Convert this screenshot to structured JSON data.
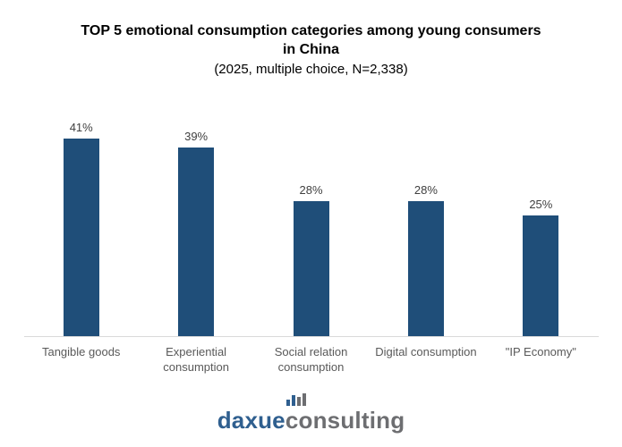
{
  "colors": {
    "bar": "#1F4E79",
    "value_label": "#404040",
    "category_label": "#595959",
    "axis_line": "#D9D9D9",
    "title": "#000000",
    "logo_blue": "#2F5F8F",
    "logo_gray": "#6D6E71"
  },
  "header": {
    "title_lines": [
      "TOP 5 emotional consumption categories among young consumers",
      "in China"
    ],
    "subtitle": "(2025, multiple choice, N=2,338)"
  },
  "chart_data": {
    "type": "bar",
    "title": "TOP 5 emotional consumption categories among young consumers in China",
    "subtitle": "(2025, multiple choice, N=2,338)",
    "categories": [
      "Tangible goods",
      "Experiential consumption",
      "Social relation consumption",
      "Digital consumption",
      "\"IP Economy\""
    ],
    "values": [
      41,
      39,
      28,
      28,
      25
    ],
    "value_labels": [
      "41%",
      "39%",
      "28%",
      "28%",
      "25%"
    ],
    "unit": "%",
    "xlabel": "",
    "ylabel": "",
    "ylim": [
      0,
      45
    ],
    "grid": false,
    "legend": false,
    "bar_color": "#1F4E79"
  },
  "footer": {
    "logo_blue_text": "daxue",
    "logo_gray_text": "consulting"
  }
}
